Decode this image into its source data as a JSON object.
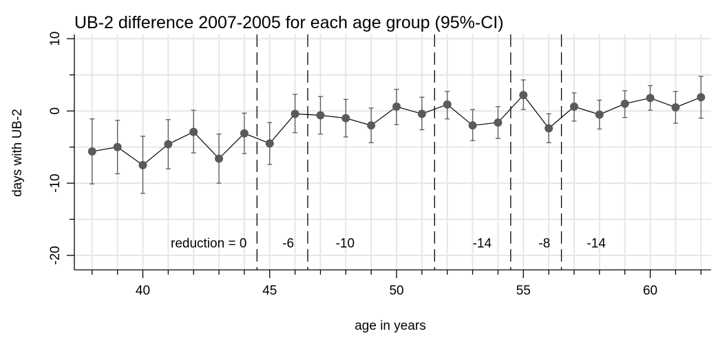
{
  "chart_data": {
    "type": "scatter",
    "title": "UB-2 difference 2007-2005 for each age group (95%-CI)",
    "xlabel": "age in years",
    "ylabel": "days with UB-2",
    "xlim": [
      37.3,
      62.4
    ],
    "ylim": [
      -22,
      10.6
    ],
    "x_ticks": [
      40,
      45,
      50,
      55,
      60
    ],
    "y_ticks": [
      -20,
      -10,
      0,
      10
    ],
    "x_minor_ticks": [
      38,
      39,
      41,
      42,
      43,
      44,
      46,
      47,
      48,
      49,
      51,
      52,
      53,
      54,
      56,
      57,
      58,
      59,
      61,
      62
    ],
    "y_minor_ticks": [
      -15,
      -5,
      5
    ],
    "grid": true,
    "series": [
      {
        "x": [
          38,
          39,
          40,
          41,
          42,
          43,
          44,
          45,
          46,
          47,
          48,
          49,
          50,
          51,
          52,
          53,
          54,
          55,
          56,
          57,
          58,
          59,
          60,
          61,
          62
        ],
        "y": [
          -5.6,
          -5.0,
          -7.5,
          -4.6,
          -2.9,
          -6.6,
          -3.1,
          -4.5,
          -0.4,
          -0.6,
          -1.0,
          -2.0,
          0.6,
          -0.4,
          0.9,
          -2.0,
          -1.6,
          2.2,
          -2.4,
          0.6,
          -0.5,
          1.0,
          1.8,
          0.5,
          1.9
        ],
        "ci_low": [
          -10.1,
          -8.7,
          -11.4,
          -8.0,
          -5.8,
          -10.0,
          -5.9,
          -7.4,
          -3.0,
          -3.2,
          -3.6,
          -4.4,
          -1.9,
          -2.6,
          -1.1,
          -4.1,
          -3.8,
          0.2,
          -4.4,
          -1.4,
          -2.5,
          -0.9,
          0.1,
          -1.7,
          -1.0
        ],
        "ci_high": [
          -1.1,
          -1.3,
          -3.5,
          -1.2,
          0.1,
          -3.2,
          -0.3,
          -1.6,
          2.3,
          2.0,
          1.6,
          0.4,
          3.0,
          1.9,
          2.7,
          0.2,
          0.6,
          4.3,
          -0.4,
          2.5,
          1.5,
          2.8,
          3.5,
          2.7,
          4.8
        ],
        "color": "#5a5a5a"
      }
    ],
    "dashed_vlines": [
      44.5,
      46.5,
      51.5,
      54.5,
      56.5
    ],
    "annotations": [
      {
        "text": "reduction = 0",
        "x": 41.1,
        "y": -18.9
      },
      {
        "text": "-6",
        "x": 45.5,
        "y": -18.9
      },
      {
        "text": "-10",
        "x": 47.6,
        "y": -18.9
      },
      {
        "text": "-14",
        "x": 53.0,
        "y": -18.9
      },
      {
        "text": "-8",
        "x": 55.6,
        "y": -18.9
      },
      {
        "text": "-14",
        "x": 57.5,
        "y": -18.9
      }
    ]
  }
}
